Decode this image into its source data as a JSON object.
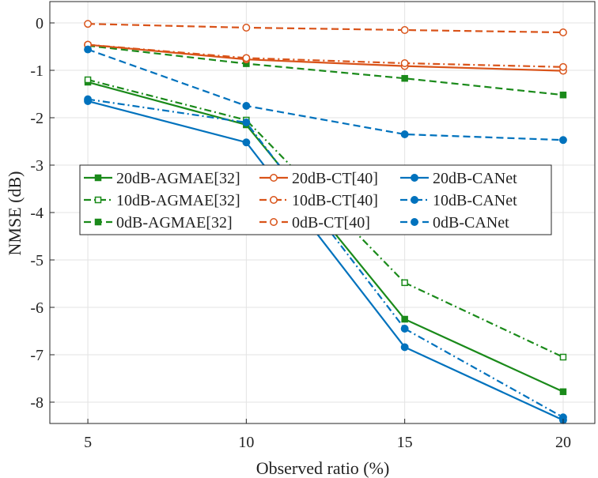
{
  "chart_data": {
    "type": "line",
    "title": "",
    "xlabel": "Observed ratio (%)",
    "ylabel": "NMSE (dB)",
    "x": [
      5,
      10,
      15,
      20
    ],
    "xticks": [
      "5",
      "10",
      "15",
      "20"
    ],
    "yticks": [
      "0",
      "-1",
      "-2",
      "-3",
      "-4",
      "-5",
      "-6",
      "-7",
      "-8"
    ],
    "xlim": [
      3.8,
      21.0
    ],
    "ylim": [
      -8.45,
      0.45
    ],
    "grid": true,
    "legend_position": "center-left",
    "series": [
      {
        "name": "20dB-AGMAE[32]",
        "color": "#1a8a1a",
        "dash": "solid",
        "marker": "square-filled",
        "values": [
          -1.25,
          -2.15,
          -6.25,
          -7.78
        ]
      },
      {
        "name": "10dB-AGMAE[32]",
        "color": "#1a8a1a",
        "dash": "dashdot",
        "marker": "square-open",
        "values": [
          -1.2,
          -2.05,
          -5.48,
          -7.05
        ]
      },
      {
        "name": "0dB-AGMAE[32]",
        "color": "#1a8a1a",
        "dash": "dashed",
        "marker": "square-filled",
        "values": [
          -0.48,
          -0.86,
          -1.17,
          -1.52
        ]
      },
      {
        "name": "20dB-CT[40]",
        "color": "#d95319",
        "dash": "solid",
        "marker": "circle-open",
        "values": [
          -0.46,
          -0.77,
          -0.91,
          -1.01
        ]
      },
      {
        "name": "10dB-CT[40]",
        "color": "#d95319",
        "dash": "dashdot",
        "marker": "circle-open",
        "values": [
          -0.46,
          -0.74,
          -0.85,
          -0.93
        ]
      },
      {
        "name": "0dB-CT[40]",
        "color": "#d95319",
        "dash": "dashed",
        "marker": "circle-open",
        "values": [
          -0.02,
          -0.1,
          -0.15,
          -0.2
        ]
      },
      {
        "name": "20dB-CANet",
        "color": "#0072bd",
        "dash": "solid",
        "marker": "circle-filled",
        "values": [
          -1.65,
          -2.52,
          -6.84,
          -8.38
        ]
      },
      {
        "name": "10dB-CANet",
        "color": "#0072bd",
        "dash": "dashdot",
        "marker": "circle-filled",
        "values": [
          -1.61,
          -2.1,
          -6.45,
          -8.32
        ]
      },
      {
        "name": "0dB-CANet",
        "color": "#0072bd",
        "dash": "dashed",
        "marker": "circle-filled",
        "values": [
          -0.56,
          -1.75,
          -2.35,
          -2.47
        ]
      }
    ]
  }
}
